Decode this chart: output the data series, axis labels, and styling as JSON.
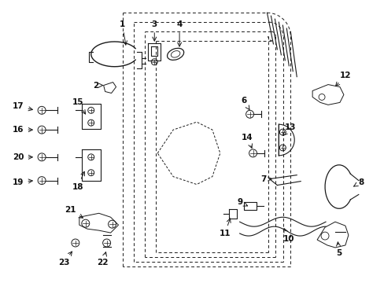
{
  "bg_color": "#ffffff",
  "line_color": "#1a1a1a",
  "label_color": "#111111",
  "figsize": [
    4.89,
    3.6
  ],
  "dpi": 100
}
